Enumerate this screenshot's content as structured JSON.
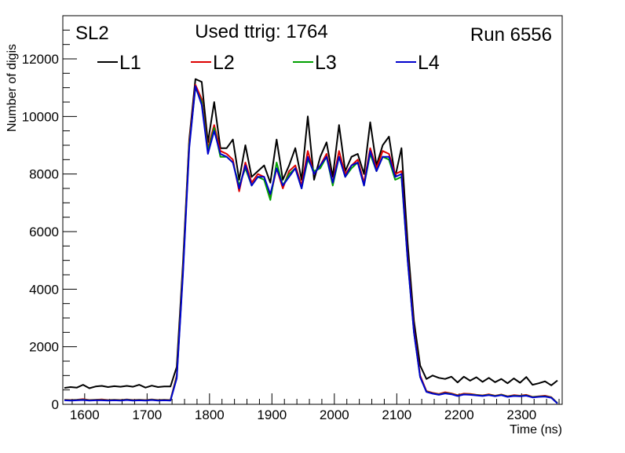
{
  "chart_data": {
    "type": "line",
    "title": "Used ttrig: 1764",
    "subtitle_left": "SL2",
    "subtitle_right": "Run 6556",
    "xlabel": "Time (ns)",
    "ylabel": "Number of digis",
    "xlim": [
      1565,
      2365
    ],
    "ylim": [
      0,
      13500
    ],
    "xticks": [
      1600,
      1700,
      1800,
      1900,
      2000,
      2100,
      2200,
      2300
    ],
    "yticks": [
      0,
      2000,
      4000,
      6000,
      8000,
      10000,
      12000
    ],
    "grid": false,
    "legend_position": "top",
    "x": [
      1567.5,
      1577.5,
      1587.5,
      1597.5,
      1607.5,
      1617.5,
      1627.5,
      1637.5,
      1647.5,
      1657.5,
      1667.5,
      1677.5,
      1687.5,
      1697.5,
      1707.5,
      1717.5,
      1727.5,
      1737.5,
      1747.5,
      1757.5,
      1767.5,
      1777.5,
      1787.5,
      1797.5,
      1807.5,
      1817.5,
      1827.5,
      1837.5,
      1847.5,
      1857.5,
      1867.5,
      1877.5,
      1887.5,
      1897.5,
      1907.5,
      1917.5,
      1927.5,
      1937.5,
      1947.5,
      1957.5,
      1967.5,
      1977.5,
      1987.5,
      1997.5,
      2007.5,
      2017.5,
      2027.5,
      2037.5,
      2047.5,
      2057.5,
      2067.5,
      2077.5,
      2087.5,
      2097.5,
      2107.5,
      2117.5,
      2127.5,
      2137.5,
      2147.5,
      2157.5,
      2167.5,
      2177.5,
      2187.5,
      2197.5,
      2207.5,
      2217.5,
      2227.5,
      2237.5,
      2247.5,
      2257.5,
      2267.5,
      2277.5,
      2287.5,
      2297.5,
      2307.5,
      2317.5,
      2327.5,
      2337.5,
      2347.5,
      2357.5
    ],
    "series": [
      {
        "name": "L1",
        "color": "#000000",
        "values": [
          570,
          600,
          580,
          680,
          560,
          620,
          640,
          600,
          630,
          610,
          640,
          610,
          680,
          580,
          650,
          600,
          620,
          620,
          1300,
          4900,
          9200,
          11300,
          11200,
          9100,
          10500,
          8900,
          8900,
          9200,
          7800,
          9000,
          7900,
          8100,
          8300,
          7700,
          9200,
          7800,
          8300,
          8900,
          7800,
          10000,
          7800,
          8600,
          9100,
          7900,
          9700,
          8100,
          8600,
          8700,
          8000,
          9800,
          8300,
          9000,
          9300,
          7900,
          8900,
          5600,
          2900,
          1350,
          880,
          1000,
          920,
          880,
          960,
          760,
          960,
          820,
          940,
          780,
          920,
          770,
          880,
          730,
          900,
          750,
          950,
          680,
          730,
          800,
          660,
          830
        ]
      },
      {
        "name": "L2",
        "color": "#dd0000",
        "values": [
          160,
          150,
          160,
          180,
          150,
          160,
          170,
          150,
          160,
          150,
          170,
          150,
          160,
          150,
          170,
          150,
          160,
          150,
          1000,
          4700,
          9100,
          11100,
          10600,
          8900,
          9700,
          8800,
          8700,
          8500,
          7400,
          8400,
          7700,
          8000,
          7900,
          7200,
          8200,
          7500,
          8100,
          8300,
          7600,
          8800,
          8000,
          8300,
          8700,
          7700,
          8800,
          8000,
          8300,
          8500,
          7700,
          8900,
          8200,
          8800,
          8700,
          8000,
          8100,
          5100,
          2600,
          1000,
          460,
          400,
          360,
          420,
          380,
          320,
          370,
          360,
          330,
          310,
          350,
          300,
          340,
          280,
          320,
          300,
          330,
          260,
          280,
          300,
          250,
          40
        ]
      },
      {
        "name": "L3",
        "color": "#00a000",
        "values": [
          150,
          140,
          150,
          160,
          140,
          150,
          150,
          140,
          150,
          140,
          160,
          140,
          150,
          140,
          160,
          140,
          150,
          140,
          950,
          4600,
          9000,
          11000,
          10500,
          8800,
          9600,
          8600,
          8600,
          8400,
          7600,
          8200,
          7600,
          7900,
          7800,
          7100,
          8400,
          7600,
          8000,
          8200,
          7500,
          8500,
          8100,
          8200,
          8600,
          7600,
          8600,
          7900,
          8200,
          8400,
          7600,
          8700,
          8100,
          8600,
          8500,
          7800,
          7900,
          5000,
          2500,
          950,
          440,
          380,
          340,
          390,
          360,
          300,
          350,
          340,
          320,
          300,
          330,
          290,
          330,
          270,
          300,
          290,
          310,
          250,
          270,
          280,
          240,
          40
        ]
      },
      {
        "name": "L4",
        "color": "#0000cc",
        "values": [
          140,
          130,
          140,
          150,
          130,
          140,
          140,
          130,
          140,
          130,
          150,
          130,
          140,
          130,
          150,
          130,
          140,
          130,
          900,
          4500,
          8900,
          11050,
          10400,
          8700,
          9500,
          8700,
          8600,
          8400,
          7500,
          8300,
          7600,
          7900,
          7900,
          7300,
          8200,
          7600,
          7900,
          8200,
          7500,
          8600,
          8000,
          8300,
          8600,
          7700,
          8600,
          7900,
          8300,
          8400,
          7600,
          8800,
          8100,
          8600,
          8600,
          7900,
          8000,
          5000,
          2500,
          950,
          430,
          370,
          330,
          380,
          350,
          290,
          340,
          330,
          310,
          290,
          320,
          280,
          320,
          260,
          290,
          280,
          300,
          240,
          260,
          270,
          230,
          30
        ]
      }
    ]
  }
}
